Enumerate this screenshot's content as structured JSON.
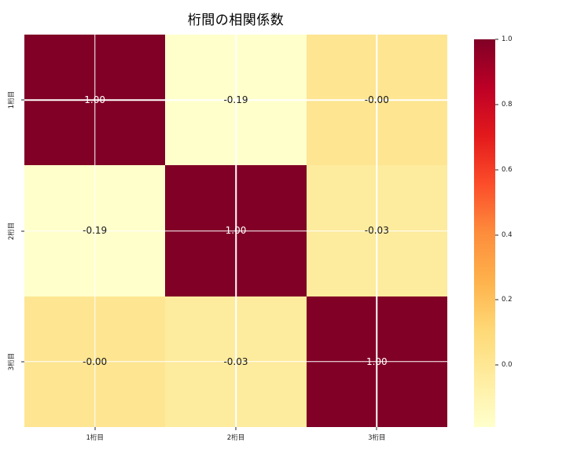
{
  "title": "桁間の相関係数",
  "chart_data": {
    "type": "heatmap",
    "title": "桁間の相関係数",
    "row_labels": [
      "1桁目",
      "2桁目",
      "3桁目"
    ],
    "col_labels": [
      "1桁目",
      "2桁目",
      "3桁目"
    ],
    "values": [
      [
        1.0,
        -0.19,
        0.0
      ],
      [
        -0.19,
        1.0,
        -0.03
      ],
      [
        0.0,
        -0.03,
        1.0
      ]
    ],
    "cell_text": [
      [
        "1.00",
        "-0.19",
        "-0.00"
      ],
      [
        "-0.19",
        "1.00",
        "-0.03"
      ],
      [
        "-0.00",
        "-0.03",
        "1.00"
      ]
    ],
    "cell_colors": [
      [
        "#800026",
        "#ffffcc",
        "#fde592"
      ],
      [
        "#ffffcc",
        "#800026",
        "#fdeb9e"
      ],
      [
        "#fde592",
        "#fdeb9e",
        "#800026"
      ]
    ],
    "cell_text_colors": [
      [
        "#ffffff",
        "#1a1a1a",
        "#1a1a1a"
      ],
      [
        "#1a1a1a",
        "#ffffff",
        "#1a1a1a"
      ],
      [
        "#1a1a1a",
        "#1a1a1a",
        "#ffffff"
      ]
    ],
    "colormap": "YlOrRd",
    "vmin": -0.19,
    "vmax": 1.0,
    "colorbar_ticks": [
      "1.0",
      "0.8",
      "0.6",
      "0.4",
      "0.2",
      "0.0"
    ],
    "colorbar_tick_values": [
      1.0,
      0.8,
      0.6,
      0.4,
      0.2,
      0.0
    ],
    "grid": true,
    "gridline_color": "#ffffff",
    "legend_position": "right-colorbar"
  },
  "colors": {
    "background": "#ffffff",
    "max_cell": "#800026",
    "min_cell": "#ffffcc",
    "tick_color": "#262626",
    "colorbar_gradient": [
      "#800026",
      "#bd0026",
      "#e31a1c",
      "#fc4e2a",
      "#fd8d3c",
      "#feb24c",
      "#fed976",
      "#ffeda0",
      "#ffffcc"
    ]
  }
}
